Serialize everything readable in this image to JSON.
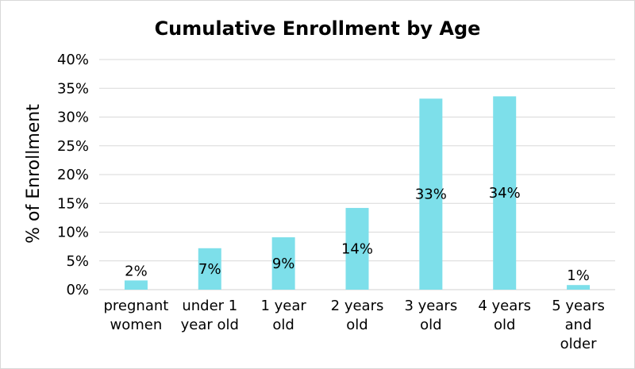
{
  "chart_data": {
    "type": "bar",
    "title": "Cumulative Enrollment by Age",
    "xlabel": "",
    "ylabel": "% of Enrollment",
    "ylim": [
      0,
      40
    ],
    "yticks": [
      0,
      5,
      10,
      15,
      20,
      25,
      30,
      35,
      40
    ],
    "ytick_labels": [
      "0%",
      "5%",
      "10%",
      "15%",
      "20%",
      "25%",
      "30%",
      "35%",
      "40%"
    ],
    "grid": true,
    "bar_color": "#7ddfea",
    "categories": [
      "pregnant women",
      "under 1 year old",
      "1 year old",
      "2 years old",
      "3 years old",
      "4 years old",
      "5 years and older"
    ],
    "category_lines": [
      [
        "pregnant",
        "women"
      ],
      [
        "under 1",
        "year old"
      ],
      [
        "1 year",
        "old"
      ],
      [
        "2 years",
        "old"
      ],
      [
        "3 years",
        "old"
      ],
      [
        "4 years",
        "old"
      ],
      [
        "5 years",
        "and",
        "older"
      ]
    ],
    "values": [
      1.6,
      7.2,
      9.1,
      14.2,
      33.2,
      33.6,
      0.8
    ],
    "data_labels": [
      "2%",
      "7%",
      "9%",
      "14%",
      "33%",
      "34%",
      "1%"
    ]
  }
}
